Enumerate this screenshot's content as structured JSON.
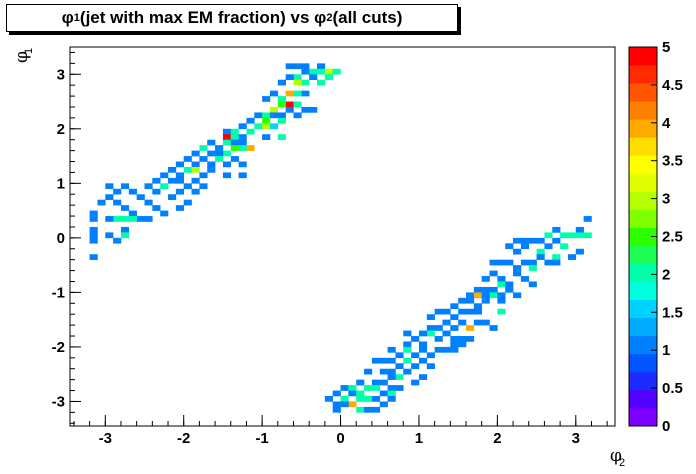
{
  "chart_data": {
    "type": "heatmap",
    "title": {
      "pre": "φ",
      "pre_sub": "1",
      "mid": " (jet with max EM fraction) vs φ",
      "post_sub": "2",
      "post": " (all cuts)"
    },
    "xlabel": {
      "symbol": "φ",
      "sub": "2"
    },
    "ylabel": {
      "symbol": "φ",
      "sub": "1"
    },
    "xlim": [
      -3.45,
      3.5
    ],
    "ylim": [
      -3.45,
      3.5
    ],
    "xticks": [
      "-3",
      "-2",
      "-1",
      "0",
      "1",
      "2",
      "3"
    ],
    "yticks": [
      "-3",
      "-2",
      "-1",
      "0",
      "1",
      "2",
      "3"
    ],
    "zlim": [
      0,
      5
    ],
    "zticks": [
      "0",
      "0.5",
      "1",
      "1.5",
      "2",
      "2.5",
      "3",
      "3.5",
      "4",
      "4.5",
      "5"
    ],
    "bin_size": 0.1,
    "colors": [
      "#7f00ff",
      "#5200ff",
      "#1e2bff",
      "#0055ff",
      "#0080ff",
      "#00aaff",
      "#00d2ff",
      "#00ffdd",
      "#00ffaa",
      "#1eff55",
      "#2bff00",
      "#80ff00",
      "#b4ff00",
      "#e0ff00",
      "#ffff00",
      "#ffdd00",
      "#ffaa00",
      "#ff8000",
      "#ff5500",
      "#ff2a00",
      "#ff0000"
    ],
    "cells": [
      [
        -0.3,
        3.1,
        1
      ],
      [
        -0.5,
        3.1,
        1
      ],
      [
        -0.6,
        3.1,
        1
      ],
      [
        -0.7,
        3.1,
        1
      ],
      [
        -0.4,
        3.0,
        2
      ],
      [
        -0.3,
        3.0,
        2
      ],
      [
        -0.2,
        3.0,
        3
      ],
      [
        -0.5,
        3.0,
        1
      ],
      [
        -0.1,
        3.0,
        2
      ],
      [
        -0.6,
        2.9,
        2
      ],
      [
        -0.4,
        2.9,
        1
      ],
      [
        -0.2,
        2.9,
        2
      ],
      [
        -0.7,
        2.9,
        1
      ],
      [
        -0.8,
        2.8,
        1
      ],
      [
        -0.5,
        2.8,
        2
      ],
      [
        -0.6,
        2.8,
        3
      ],
      [
        -0.3,
        2.8,
        2
      ],
      [
        -0.7,
        2.6,
        4
      ],
      [
        -0.9,
        2.6,
        1
      ],
      [
        -0.5,
        2.6,
        1
      ],
      [
        -0.6,
        2.6,
        2
      ],
      [
        -0.8,
        2.5,
        2
      ],
      [
        -1.0,
        2.5,
        1
      ],
      [
        -0.7,
        2.4,
        5
      ],
      [
        -0.8,
        2.4,
        2.5
      ],
      [
        -0.6,
        2.4,
        2
      ],
      [
        -0.9,
        2.3,
        3
      ],
      [
        -0.7,
        2.3,
        1
      ],
      [
        -0.5,
        2.3,
        1
      ],
      [
        -0.4,
        2.3,
        1
      ],
      [
        -1.1,
        2.2,
        1
      ],
      [
        -1.0,
        2.2,
        2
      ],
      [
        -0.9,
        2.2,
        1
      ],
      [
        -0.8,
        2.2,
        1
      ],
      [
        -0.6,
        2.2,
        1
      ],
      [
        -1.2,
        2.1,
        1
      ],
      [
        -1.0,
        2.1,
        2.5
      ],
      [
        -0.8,
        2.1,
        2
      ],
      [
        -1.3,
        2.0,
        1
      ],
      [
        -1.1,
        2.0,
        2
      ],
      [
        -1.0,
        2.0,
        3
      ],
      [
        -0.9,
        2.0,
        1.5
      ],
      [
        -1.5,
        1.9,
        1
      ],
      [
        -1.4,
        1.9,
        2
      ],
      [
        -1.2,
        1.9,
        2
      ],
      [
        -1.5,
        1.8,
        5
      ],
      [
        -1.4,
        1.8,
        2
      ],
      [
        -1.3,
        1.8,
        1
      ],
      [
        -1.0,
        1.8,
        1
      ],
      [
        -0.8,
        1.8,
        2
      ],
      [
        -1.7,
        1.7,
        1
      ],
      [
        -1.5,
        1.7,
        2
      ],
      [
        -1.4,
        1.7,
        1
      ],
      [
        -1.3,
        1.7,
        1
      ],
      [
        -1.2,
        1.6,
        4
      ],
      [
        -1.3,
        1.6,
        2
      ],
      [
        -1.6,
        1.6,
        1
      ],
      [
        -1.8,
        1.6,
        2
      ],
      [
        -1.4,
        1.6,
        2.5
      ],
      [
        -1.9,
        1.5,
        1
      ],
      [
        -1.7,
        1.5,
        1
      ],
      [
        -1.5,
        1.5,
        2
      ],
      [
        -1.6,
        1.5,
        1
      ],
      [
        -2.0,
        1.4,
        1
      ],
      [
        -1.8,
        1.4,
        1
      ],
      [
        -1.6,
        1.4,
        2
      ],
      [
        -1.4,
        1.4,
        1
      ],
      [
        -2.1,
        1.3,
        1
      ],
      [
        -1.9,
        1.3,
        1
      ],
      [
        -1.7,
        1.3,
        1
      ],
      [
        -1.5,
        1.3,
        1
      ],
      [
        -1.3,
        1.3,
        1
      ],
      [
        -2.2,
        1.2,
        1
      ],
      [
        -2.0,
        1.2,
        2
      ],
      [
        -1.9,
        1.2,
        3
      ],
      [
        -1.7,
        1.2,
        1
      ],
      [
        -2.3,
        1.1,
        1
      ],
      [
        -2.1,
        1.1,
        1
      ],
      [
        -1.8,
        1.1,
        1
      ],
      [
        -1.5,
        1.1,
        1
      ],
      [
        -1.3,
        1.1,
        1
      ],
      [
        -2.4,
        1.0,
        1
      ],
      [
        -2.2,
        1.0,
        1
      ],
      [
        -2.1,
        1.0,
        1
      ],
      [
        -1.9,
        1.0,
        1
      ],
      [
        -2.5,
        0.9,
        1
      ],
      [
        -2.3,
        0.9,
        2
      ],
      [
        -2.0,
        0.9,
        1
      ],
      [
        -1.8,
        0.9,
        1
      ],
      [
        -2.8,
        0.9,
        1
      ],
      [
        -3.0,
        0.9,
        1
      ],
      [
        -2.9,
        0.8,
        1
      ],
      [
        -2.7,
        0.8,
        1
      ],
      [
        -2.4,
        0.8,
        1
      ],
      [
        -2.1,
        0.8,
        1
      ],
      [
        -1.9,
        0.8,
        1
      ],
      [
        -3.0,
        0.7,
        1
      ],
      [
        -2.6,
        0.7,
        1
      ],
      [
        -2.2,
        0.7,
        1
      ],
      [
        -2.9,
        0.6,
        1
      ],
      [
        -2.5,
        0.6,
        1
      ],
      [
        -2.0,
        0.6,
        1
      ],
      [
        -3.1,
        0.6,
        1
      ],
      [
        -2.8,
        0.5,
        1
      ],
      [
        -2.4,
        0.5,
        1
      ],
      [
        -2.1,
        0.5,
        1
      ],
      [
        -3.2,
        0.4,
        1
      ],
      [
        -2.7,
        0.4,
        1
      ],
      [
        -2.3,
        0.4,
        1
      ],
      [
        -2.6,
        0.3,
        1
      ],
      [
        -2.9,
        0.3,
        2
      ],
      [
        -2.8,
        0.3,
        2
      ],
      [
        -2.7,
        0.3,
        2
      ],
      [
        -2.5,
        0.3,
        1
      ],
      [
        -3.0,
        0.3,
        1
      ],
      [
        -3.2,
        0.3,
        1
      ],
      [
        -3.2,
        0.1,
        1
      ],
      [
        -2.8,
        0.1,
        1
      ],
      [
        -3.0,
        0.0,
        1
      ],
      [
        -3.2,
        0.0,
        1
      ],
      [
        -2.8,
        0.0,
        2
      ],
      [
        -2.9,
        -0.1,
        1
      ],
      [
        -3.2,
        -0.1,
        1
      ],
      [
        -3.2,
        -0.4,
        1
      ],
      [
        3.1,
        0.3,
        1
      ],
      [
        3.0,
        0.1,
        1
      ],
      [
        2.7,
        0.1,
        1
      ],
      [
        3.1,
        0.0,
        2
      ],
      [
        3.0,
        0.0,
        2
      ],
      [
        2.9,
        0.0,
        2
      ],
      [
        2.8,
        0.0,
        2
      ],
      [
        2.6,
        0.0,
        2
      ],
      [
        2.5,
        -0.1,
        1
      ],
      [
        2.4,
        -0.1,
        1
      ],
      [
        2.3,
        -0.1,
        1
      ],
      [
        2.2,
        -0.1,
        1
      ],
      [
        2.7,
        -0.1,
        1
      ],
      [
        2.8,
        -0.2,
        2
      ],
      [
        2.6,
        -0.2,
        1
      ],
      [
        2.3,
        -0.2,
        1
      ],
      [
        2.1,
        -0.2,
        1
      ],
      [
        3.0,
        -0.3,
        1
      ],
      [
        2.5,
        -0.3,
        2
      ],
      [
        2.2,
        -0.3,
        1
      ],
      [
        2.7,
        -0.4,
        2
      ],
      [
        2.9,
        -0.4,
        1
      ],
      [
        2.5,
        -0.4,
        1
      ],
      [
        2.4,
        -0.5,
        1
      ],
      [
        2.6,
        -0.5,
        1
      ],
      [
        2.7,
        -0.5,
        1
      ],
      [
        2.3,
        -0.5,
        1
      ],
      [
        2.1,
        -0.5,
        1
      ],
      [
        2.0,
        -0.5,
        1
      ],
      [
        1.9,
        -0.5,
        1
      ],
      [
        2.2,
        -0.6,
        1
      ],
      [
        2.4,
        -0.6,
        2
      ],
      [
        1.9,
        -0.7,
        1
      ],
      [
        2.2,
        -0.7,
        1
      ],
      [
        1.8,
        -0.8,
        1
      ],
      [
        2.0,
        -0.8,
        1
      ],
      [
        2.3,
        -0.8,
        1
      ],
      [
        2.0,
        -0.9,
        2
      ],
      [
        2.4,
        -0.9,
        1
      ],
      [
        2.1,
        -0.9,
        1
      ],
      [
        1.8,
        -1.0,
        1
      ],
      [
        1.9,
        -1.0,
        1
      ],
      [
        1.7,
        -1.0,
        1
      ],
      [
        2.1,
        -1.0,
        1
      ],
      [
        1.9,
        -1.1,
        2
      ],
      [
        2.2,
        -1.1,
        1
      ],
      [
        1.6,
        -1.1,
        1
      ],
      [
        1.7,
        -1.1,
        4
      ],
      [
        1.8,
        -1.1,
        1
      ],
      [
        2.0,
        -1.1,
        1
      ],
      [
        1.6,
        -1.2,
        1
      ],
      [
        1.5,
        -1.2,
        1
      ],
      [
        1.8,
        -1.2,
        1
      ],
      [
        2.0,
        -1.2,
        1
      ],
      [
        1.4,
        -1.3,
        1
      ],
      [
        1.7,
        -1.3,
        1
      ],
      [
        1.5,
        -1.4,
        1
      ],
      [
        1.3,
        -1.4,
        1
      ],
      [
        1.2,
        -1.4,
        1
      ],
      [
        2.0,
        -1.4,
        2
      ],
      [
        1.7,
        -1.4,
        1
      ],
      [
        1.6,
        -1.4,
        1
      ],
      [
        1.4,
        -1.5,
        1
      ],
      [
        1.1,
        -1.5,
        1
      ],
      [
        1.5,
        -1.6,
        1
      ],
      [
        1.3,
        -1.6,
        1
      ],
      [
        1.6,
        -1.7,
        4
      ],
      [
        1.2,
        -1.7,
        1
      ],
      [
        1.7,
        -1.6,
        1
      ],
      [
        1.8,
        -1.6,
        1
      ],
      [
        1.1,
        -1.7,
        1
      ],
      [
        1.4,
        -1.7,
        1
      ],
      [
        1.9,
        -1.7,
        1
      ],
      [
        1.3,
        -1.8,
        1
      ],
      [
        1.1,
        -1.8,
        2
      ],
      [
        1.0,
        -1.8,
        1
      ],
      [
        0.8,
        -1.8,
        1
      ],
      [
        1.5,
        -1.9,
        1
      ],
      [
        1.4,
        -1.9,
        1
      ],
      [
        1.2,
        -1.9,
        1
      ],
      [
        0.9,
        -1.9,
        1
      ],
      [
        1.6,
        -1.9,
        1
      ],
      [
        1.0,
        -2.0,
        1
      ],
      [
        0.8,
        -2.0,
        1
      ],
      [
        1.4,
        -2.0,
        1
      ],
      [
        1.5,
        -2.0,
        1
      ],
      [
        0.6,
        -2.1,
        1
      ],
      [
        0.8,
        -2.1,
        2
      ],
      [
        1.0,
        -2.1,
        1
      ],
      [
        1.2,
        -2.1,
        1
      ],
      [
        1.3,
        -2.1,
        1
      ],
      [
        1.4,
        -2.1,
        1
      ],
      [
        0.7,
        -2.2,
        1
      ],
      [
        0.9,
        -2.2,
        1
      ],
      [
        1.1,
        -2.2,
        1
      ],
      [
        0.6,
        -2.3,
        1
      ],
      [
        0.8,
        -2.3,
        2
      ],
      [
        1.0,
        -2.3,
        1
      ],
      [
        0.4,
        -2.3,
        1
      ],
      [
        0.5,
        -2.3,
        1
      ],
      [
        0.9,
        -2.4,
        1
      ],
      [
        0.7,
        -2.4,
        1
      ],
      [
        1.1,
        -2.4,
        1
      ],
      [
        0.5,
        -2.5,
        1
      ],
      [
        0.6,
        -2.5,
        1
      ],
      [
        0.3,
        -2.5,
        1
      ],
      [
        0.8,
        -2.5,
        1
      ],
      [
        1.0,
        -2.6,
        1
      ],
      [
        0.7,
        -2.6,
        2
      ],
      [
        0.6,
        -2.6,
        1
      ],
      [
        0.4,
        -2.7,
        1
      ],
      [
        0.2,
        -2.7,
        1
      ],
      [
        0.5,
        -2.7,
        1
      ],
      [
        0.9,
        -2.7,
        1
      ],
      [
        0.0,
        -2.8,
        1
      ],
      [
        0.1,
        -2.8,
        2
      ],
      [
        0.3,
        -2.8,
        2
      ],
      [
        0.4,
        -2.8,
        2
      ],
      [
        0.6,
        -2.8,
        1
      ],
      [
        0.7,
        -2.8,
        1
      ],
      [
        -0.1,
        -2.9,
        1
      ],
      [
        0.1,
        -2.9,
        1
      ],
      [
        0.2,
        -2.9,
        2
      ],
      [
        0.5,
        -2.9,
        1
      ],
      [
        0.6,
        -2.9,
        2
      ],
      [
        -0.2,
        -3.0,
        1
      ],
      [
        0.0,
        -3.0,
        2
      ],
      [
        0.2,
        -3.0,
        2
      ],
      [
        0.3,
        -3.0,
        2
      ],
      [
        0.4,
        -3.0,
        1
      ],
      [
        0.6,
        -3.0,
        1
      ],
      [
        -0.1,
        -3.1,
        1
      ],
      [
        0.1,
        -3.1,
        4
      ],
      [
        0.0,
        -3.1,
        1
      ],
      [
        0.5,
        -3.1,
        1
      ],
      [
        0.2,
        -3.2,
        2
      ],
      [
        0.3,
        -3.2,
        1
      ],
      [
        0.4,
        -3.2,
        1
      ],
      [
        -0.1,
        -3.2,
        1
      ]
    ]
  }
}
